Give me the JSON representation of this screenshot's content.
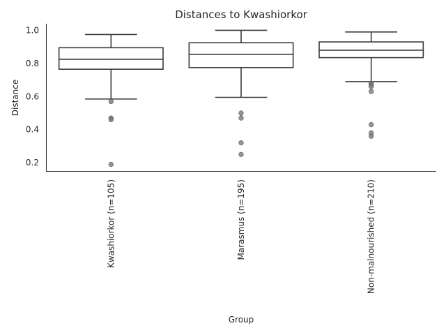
{
  "chart_data": {
    "type": "box",
    "title": "Distances to Kwashiorkor",
    "xlabel": "Group",
    "ylabel": "Distance",
    "ylim": [
      0.15,
      1.04
    ],
    "yticks": [
      0.2,
      0.4,
      0.6,
      0.8,
      1.0
    ],
    "ytick_labels": [
      "0.2",
      "0.4",
      "0.6",
      "0.8",
      "1.0"
    ],
    "grid": false,
    "categories": [
      "Kwashiorkor (n=105)",
      "Marasmus (n=195)",
      "Non-malnourished (n=210)"
    ],
    "boxes": [
      {
        "whisker_low": 0.585,
        "q1": 0.765,
        "median": 0.825,
        "q3": 0.895,
        "whisker_high": 0.975,
        "outliers": [
          0.57,
          0.47,
          0.46,
          0.19
        ]
      },
      {
        "whisker_low": 0.595,
        "q1": 0.775,
        "median": 0.855,
        "q3": 0.925,
        "whisker_high": 1.0,
        "outliers": [
          0.5,
          0.47,
          0.32,
          0.25
        ]
      },
      {
        "whisker_low": 0.69,
        "q1": 0.835,
        "median": 0.88,
        "q3": 0.93,
        "whisker_high": 0.99,
        "outliers": [
          0.68,
          0.67,
          0.66,
          0.63,
          0.43,
          0.38,
          0.36
        ]
      }
    ]
  }
}
